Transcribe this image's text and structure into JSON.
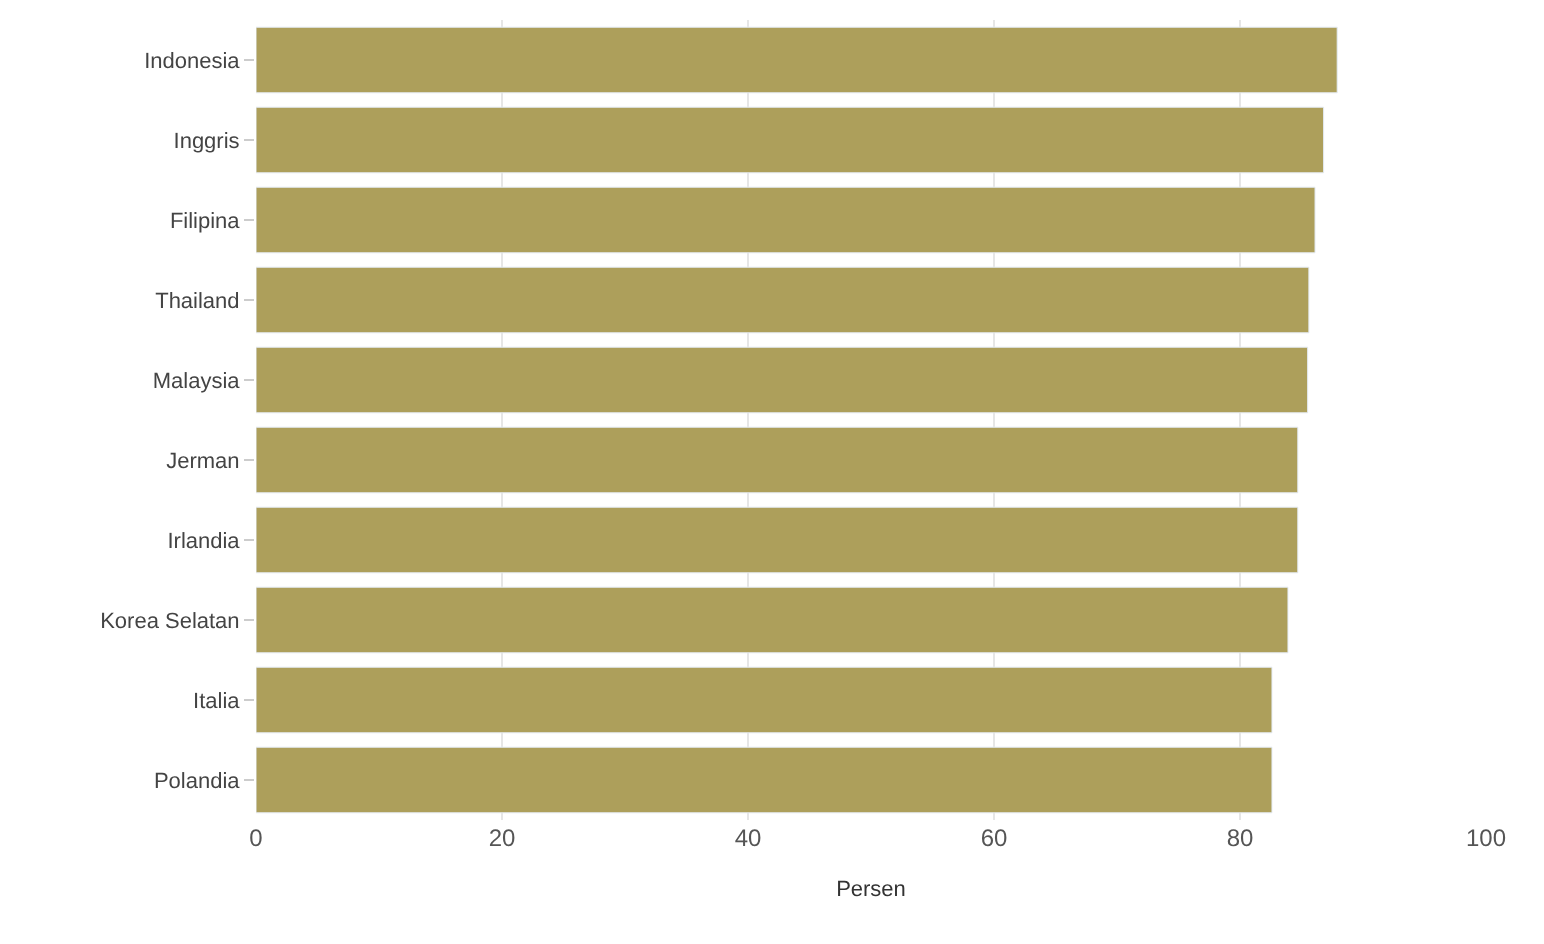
{
  "chart_data": {
    "type": "bar",
    "orientation": "horizontal",
    "xlabel": "Persen",
    "categories": [
      "Indonesia",
      "Inggris",
      "Filipina",
      "Thailand",
      "Malaysia",
      "Jerman",
      "Irlandia",
      "Korea Selatan",
      "Italia",
      "Polandia"
    ],
    "values": [
      87.9,
      86.8,
      86.1,
      85.6,
      85.5,
      84.7,
      84.7,
      83.9,
      82.6,
      82.6
    ],
    "color": "#ad9f5b",
    "xlim": [
      0,
      100
    ],
    "xticks": [
      0,
      20,
      40,
      60,
      80,
      100
    ],
    "grid": "x"
  }
}
